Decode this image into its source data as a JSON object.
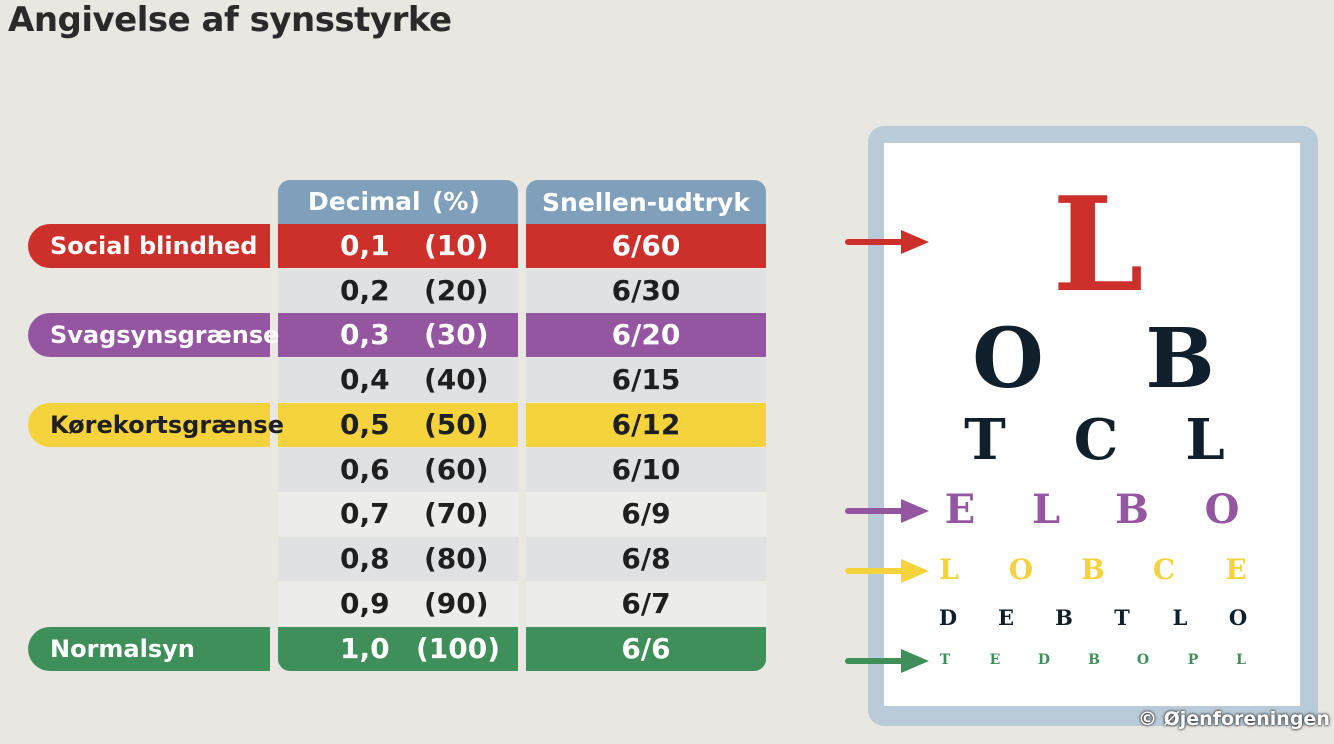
{
  "title": "Angivelse af synsstyrke",
  "header": {
    "decimal": "Decimal",
    "percent": "(%)",
    "snellen": "Snellen-udtryk"
  },
  "rows": [
    {
      "decimal": "0,1",
      "percent": "(10)",
      "snellen": "6/60",
      "label": "Social blindhed",
      "color": "#cd302b"
    },
    {
      "decimal": "0,2",
      "percent": "(20)",
      "snellen": "6/30"
    },
    {
      "decimal": "0,3",
      "percent": "(30)",
      "snellen": "6/20",
      "label": "Svagsynsgrænse",
      "color": "#9456a1"
    },
    {
      "decimal": "0,4",
      "percent": "(40)",
      "snellen": "6/15"
    },
    {
      "decimal": "0,5",
      "percent": "(50)",
      "snellen": "6/12",
      "label": "Kørekortsgrænse",
      "color": "#f5d33d"
    },
    {
      "decimal": "0,6",
      "percent": "(60)",
      "snellen": "6/10"
    },
    {
      "decimal": "0,7",
      "percent": "(70)",
      "snellen": "6/9"
    },
    {
      "decimal": "0,8",
      "percent": "(80)",
      "snellen": "6/8"
    },
    {
      "decimal": "0,9",
      "percent": "(90)",
      "snellen": "6/7"
    },
    {
      "decimal": "1,0",
      "percent": "(100)",
      "snellen": "6/6",
      "label": "Normalsyn",
      "color": "#3f8f5a"
    }
  ],
  "eye_chart": {
    "lines": [
      {
        "letters": [
          "L"
        ],
        "color": "#cd302b"
      },
      {
        "letters": [
          "O",
          "B"
        ],
        "color": "#0f1f2b"
      },
      {
        "letters": [
          "T",
          "C",
          "L"
        ],
        "color": "#0f1f2b"
      },
      {
        "letters": [
          "E",
          "L",
          "B",
          "O"
        ],
        "color": "#9456a1"
      },
      {
        "letters": [
          "L",
          "O",
          "B",
          "C",
          "E"
        ],
        "color": "#f5d33d"
      },
      {
        "letters": [
          "D",
          "E",
          "B",
          "T",
          "L",
          "O"
        ],
        "color": "#0f1f2b"
      },
      {
        "letters": [
          "T",
          "E",
          "D",
          "B",
          "O",
          "P",
          "L"
        ],
        "color": "#3f8f5a"
      }
    ]
  },
  "copyright": "© Øjenforeningen"
}
